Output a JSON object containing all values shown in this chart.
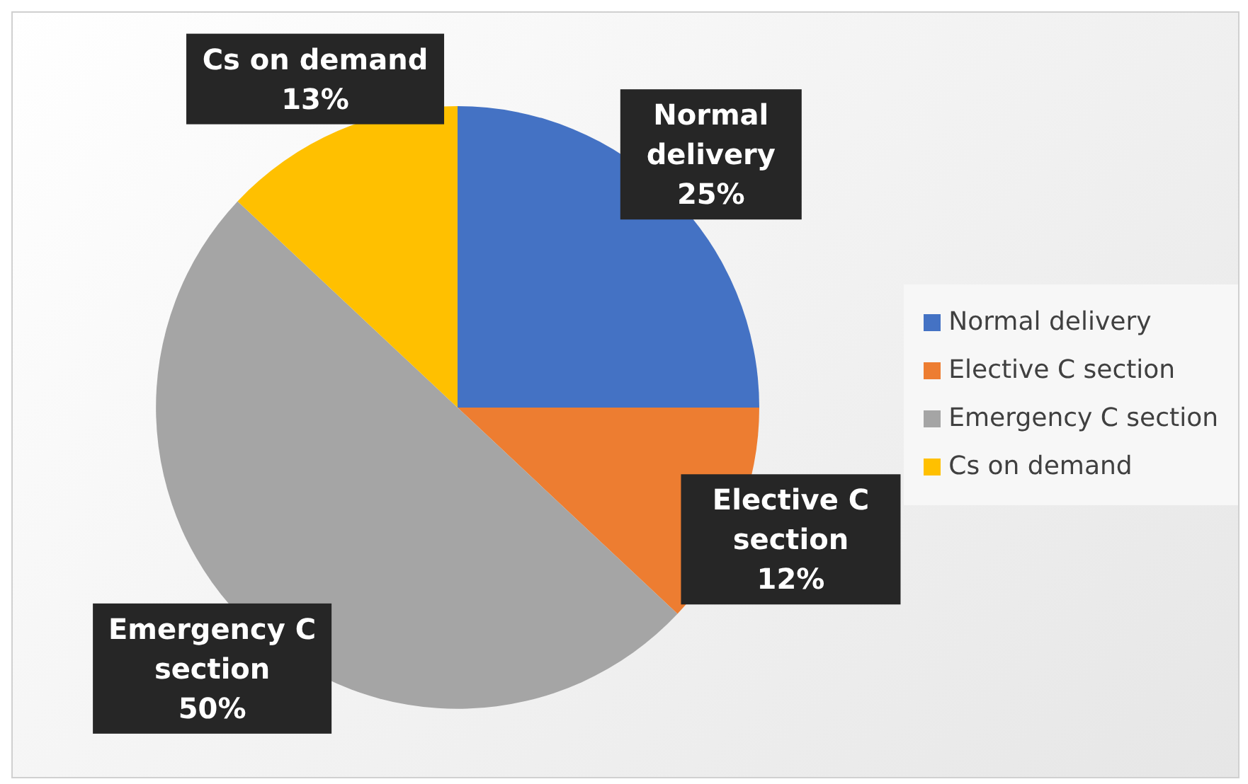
{
  "chart_data": {
    "type": "pie",
    "categories": [
      "Normal delivery",
      "Elective C section",
      "Emergency C section",
      "Cs on demand"
    ],
    "values": [
      25,
      12,
      50,
      13
    ],
    "colors": [
      "#4472c4",
      "#ed7d31",
      "#a5a5a5",
      "#ffc000"
    ],
    "value_labels": [
      "25%",
      "12%",
      "50%",
      "13%"
    ],
    "legend": "right"
  }
}
